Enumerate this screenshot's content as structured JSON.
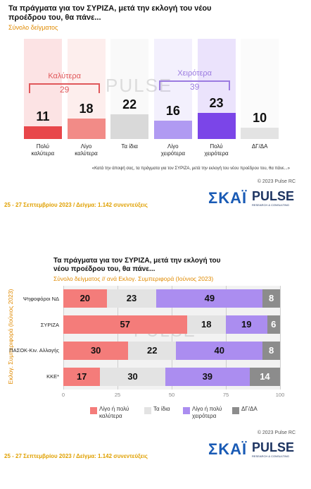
{
  "chart_data": [
    {
      "type": "bar",
      "title": "Τα πράγματα για τον ΣΥΡΙΖΑ, μετά την εκλογή του νέου προέδρου του, θα πάνε...",
      "subtitle": "Σύνολο δείγματος",
      "categories": [
        "Πολύ καλύτερα",
        "Λίγο καλύτερα",
        "Τα ίδια",
        "Λίγο χειρότερα",
        "Πολύ χειρότερα",
        "ΔΓ/ΔΑ"
      ],
      "values": [
        11,
        18,
        22,
        16,
        23,
        10
      ],
      "colors": [
        "#e8464a",
        "#f28b87",
        "#d9d9d9",
        "#b09af2",
        "#7b45e8",
        "#e3e3e3"
      ],
      "annotations": [
        {
          "label": "Καλύτερα",
          "value": 29,
          "color": "#e0575a"
        },
        {
          "label": "Χειρότερα",
          "value": 39,
          "color": "#9b7be0"
        }
      ],
      "note": "«Κατά την άποψή σας, τα πράγματα για τον ΣΥΡΙΖΑ, μετά την εκλογή του νέου προέδρου του, θα πάνε...»",
      "copyright": "© 2023 Pulse RC",
      "fieldwork": "25 - 27 Σεπτεμβρίου 2023  /  Δείγμα:  1.142 συνεντεύξεις"
    },
    {
      "type": "stacked_bar",
      "title": "Τα πράγματα για τον ΣΥΡΙΖΑ, μετά την εκλογή του νέου προέδρου του, θα πάνε...",
      "subtitle": "Σύνολο δείγματος // ανά Εκλογ. Συμπεριφορά (Ιούνιος 2023)",
      "y_label": "Εκλογ. Συμπεριφορά (Ιούνιος 2023)",
      "categories": [
        "Ψηφοφόροι ΝΔ",
        "ΣΥΡΙΖΑ",
        "ΠΑΣΟΚ-Κιν. Αλλαγής",
        "ΚΚΕ*"
      ],
      "series": [
        {
          "name": "Λίγο ή πολύ καλύτερα",
          "color": "#f47c7a",
          "values": [
            20,
            57,
            30,
            17
          ]
        },
        {
          "name": "Τα ίδια",
          "color": "#e3e3e3",
          "values": [
            23,
            18,
            22,
            30
          ]
        },
        {
          "name": "Λίγο ή πολύ χειρότερα",
          "color": "#ab8df0",
          "values": [
            49,
            19,
            40,
            39
          ]
        },
        {
          "name": "ΔΓ/ΔΑ",
          "color": "#8c8c8c",
          "values": [
            8,
            6,
            8,
            14
          ]
        }
      ],
      "xlim": [
        0,
        100
      ],
      "xticks": [
        0,
        25,
        50,
        75,
        100
      ],
      "grid": true,
      "copyright": "© 2023 Pulse RC",
      "fieldwork": "25 - 27 Σεπτεμβρίου 2023  /  Δείγμα:  1.142 συνεντεύξεις"
    }
  ],
  "logos": {
    "skai": "ΣΚΑΪ",
    "pulse": "PULSE",
    "pulse_sub": "RESEARCH & CONSULTING"
  }
}
